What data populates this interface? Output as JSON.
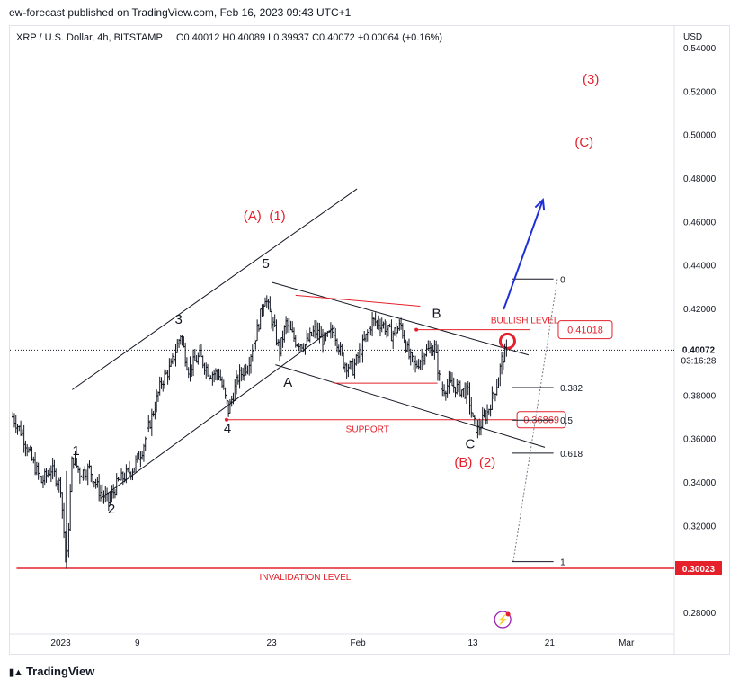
{
  "header": {
    "published": "ew-forecast published on TradingView.com, Feb 16, 2023 09:43 UTC+1",
    "symbol": "XRP / U.S. Dollar, 4h, BITSTAMP",
    "ohlc": "O0.40012 H0.40089 L0.39937 C0.40072 +0.00064 (+0.16%)"
  },
  "footer": {
    "brand": "TradingView"
  },
  "colors": {
    "red": "#e5202a",
    "blue": "#1e2fd8",
    "dark": "#131722",
    "grid": "#e0e3eb"
  },
  "chart_data": {
    "type": "candlestick",
    "currency_label": "USD",
    "ylim": [
      0.27,
      0.55
    ],
    "y_ticks": [
      "0.54000",
      "0.52000",
      "0.50000",
      "0.48000",
      "0.46000",
      "0.44000",
      "0.42000",
      "0.40000",
      "0.38000",
      "0.36000",
      "0.34000",
      "0.32000",
      "0.30000",
      "0.28000"
    ],
    "x_ticks": [
      {
        "label": "2023",
        "day": 0
      },
      {
        "label": "9",
        "day": 8
      },
      {
        "label": "23",
        "day": 22
      },
      {
        "label": "Feb",
        "day": 31
      },
      {
        "label": "13",
        "day": 43
      },
      {
        "label": "21",
        "day": 51
      },
      {
        "label": "Mar",
        "day": 59
      }
    ],
    "xlim_days": [
      -5.3,
      64
    ],
    "last_price": "0.40072",
    "countdown": "03:16:28",
    "invalidation_price_tag": "0.30023",
    "price_path": [
      {
        "day": -5,
        "price": 0.37
      },
      {
        "day": -4,
        "price": 0.362
      },
      {
        "day": -3,
        "price": 0.35
      },
      {
        "day": -2,
        "price": 0.34
      },
      {
        "day": -1,
        "price": 0.346
      },
      {
        "day": 0,
        "price": 0.338
      },
      {
        "day": 0.6,
        "price": 0.3
      },
      {
        "day": 1.2,
        "price": 0.352
      },
      {
        "day": 2,
        "price": 0.344
      },
      {
        "day": 3,
        "price": 0.346
      },
      {
        "day": 4,
        "price": 0.336
      },
      {
        "day": 5,
        "price": 0.331
      },
      {
        "day": 6,
        "price": 0.34
      },
      {
        "day": 7.5,
        "price": 0.346
      },
      {
        "day": 8.5,
        "price": 0.355
      },
      {
        "day": 9.5,
        "price": 0.37
      },
      {
        "day": 10.5,
        "price": 0.386
      },
      {
        "day": 11.5,
        "price": 0.393
      },
      {
        "day": 12.5,
        "price": 0.408
      },
      {
        "day": 13.3,
        "price": 0.392
      },
      {
        "day": 14.5,
        "price": 0.398
      },
      {
        "day": 15.5,
        "price": 0.39
      },
      {
        "day": 16.5,
        "price": 0.39
      },
      {
        "day": 17.5,
        "price": 0.373
      },
      {
        "day": 18.5,
        "price": 0.388
      },
      {
        "day": 19.5,
        "price": 0.394
      },
      {
        "day": 20.5,
        "price": 0.41
      },
      {
        "day": 21.3,
        "price": 0.426
      },
      {
        "day": 22.3,
        "price": 0.41
      },
      {
        "day": 22.8,
        "price": 0.4
      },
      {
        "day": 23.5,
        "price": 0.413
      },
      {
        "day": 24.5,
        "price": 0.405
      },
      {
        "day": 25.5,
        "price": 0.403
      },
      {
        "day": 26.5,
        "price": 0.41
      },
      {
        "day": 27.5,
        "price": 0.405
      },
      {
        "day": 28.5,
        "price": 0.41
      },
      {
        "day": 29.5,
        "price": 0.395
      },
      {
        "day": 30.5,
        "price": 0.392
      },
      {
        "day": 31.5,
        "price": 0.403
      },
      {
        "day": 32.5,
        "price": 0.414
      },
      {
        "day": 33.5,
        "price": 0.413
      },
      {
        "day": 34.5,
        "price": 0.408
      },
      {
        "day": 35.5,
        "price": 0.412
      },
      {
        "day": 36.3,
        "price": 0.398
      },
      {
        "day": 37,
        "price": 0.393
      },
      {
        "day": 38,
        "price": 0.4
      },
      {
        "day": 39,
        "price": 0.402
      },
      {
        "day": 39.7,
        "price": 0.382
      },
      {
        "day": 40.5,
        "price": 0.385
      },
      {
        "day": 41.5,
        "price": 0.383
      },
      {
        "day": 42.5,
        "price": 0.381
      },
      {
        "day": 43,
        "price": 0.368
      },
      {
        "day": 43.5,
        "price": 0.364
      },
      {
        "day": 44.5,
        "price": 0.372
      },
      {
        "day": 45.5,
        "price": 0.385
      },
      {
        "day": 46,
        "price": 0.396
      },
      {
        "day": 46.5,
        "price": 0.4007
      }
    ],
    "wave_labels": [
      {
        "text": "1",
        "day": 1.6,
        "price": 0.3525,
        "color": "dark"
      },
      {
        "text": "2",
        "day": 5.3,
        "price": 0.3255,
        "color": "dark"
      },
      {
        "text": "3",
        "day": 12.3,
        "price": 0.4128,
        "color": "dark"
      },
      {
        "text": "4",
        "day": 17.4,
        "price": 0.3625,
        "color": "dark"
      },
      {
        "text": "5",
        "day": 21.4,
        "price": 0.4385,
        "color": "dark"
      },
      {
        "text": "A",
        "day": 23.7,
        "price": 0.384,
        "color": "dark"
      },
      {
        "text": "B",
        "day": 39.2,
        "price": 0.4155,
        "color": "dark"
      },
      {
        "text": "C",
        "day": 42.7,
        "price": 0.3555,
        "color": "dark"
      },
      {
        "text": "(A)",
        "day": 20,
        "price": 0.4605,
        "color": "red"
      },
      {
        "text": "(1)",
        "day": 22.6,
        "price": 0.4605,
        "color": "red"
      },
      {
        "text": "(B)",
        "day": 42,
        "price": 0.347,
        "color": "red"
      },
      {
        "text": "(2)",
        "day": 44.5,
        "price": 0.347,
        "color": "red"
      },
      {
        "text": "(3)",
        "day": 55.3,
        "price": 0.5235,
        "color": "red"
      },
      {
        "text": "(C)",
        "day": 54.6,
        "price": 0.4945,
        "color": "red"
      }
    ],
    "fib_levels": [
      {
        "label": "0",
        "price": 0.4335
      },
      {
        "label": "0.382",
        "price": 0.3835
      },
      {
        "label": "0.5",
        "price": 0.3685
      },
      {
        "label": "0.618",
        "price": 0.3533
      },
      {
        "label": "1",
        "price": 0.3033
      }
    ],
    "annotations": {
      "bullish_label": "BULLISH LEVEL",
      "bullish_price": "0.41018",
      "support_label": "SUPPORT",
      "support_price": "0.36869",
      "invalidation_label": "INVALIDATION LEVEL"
    }
  }
}
